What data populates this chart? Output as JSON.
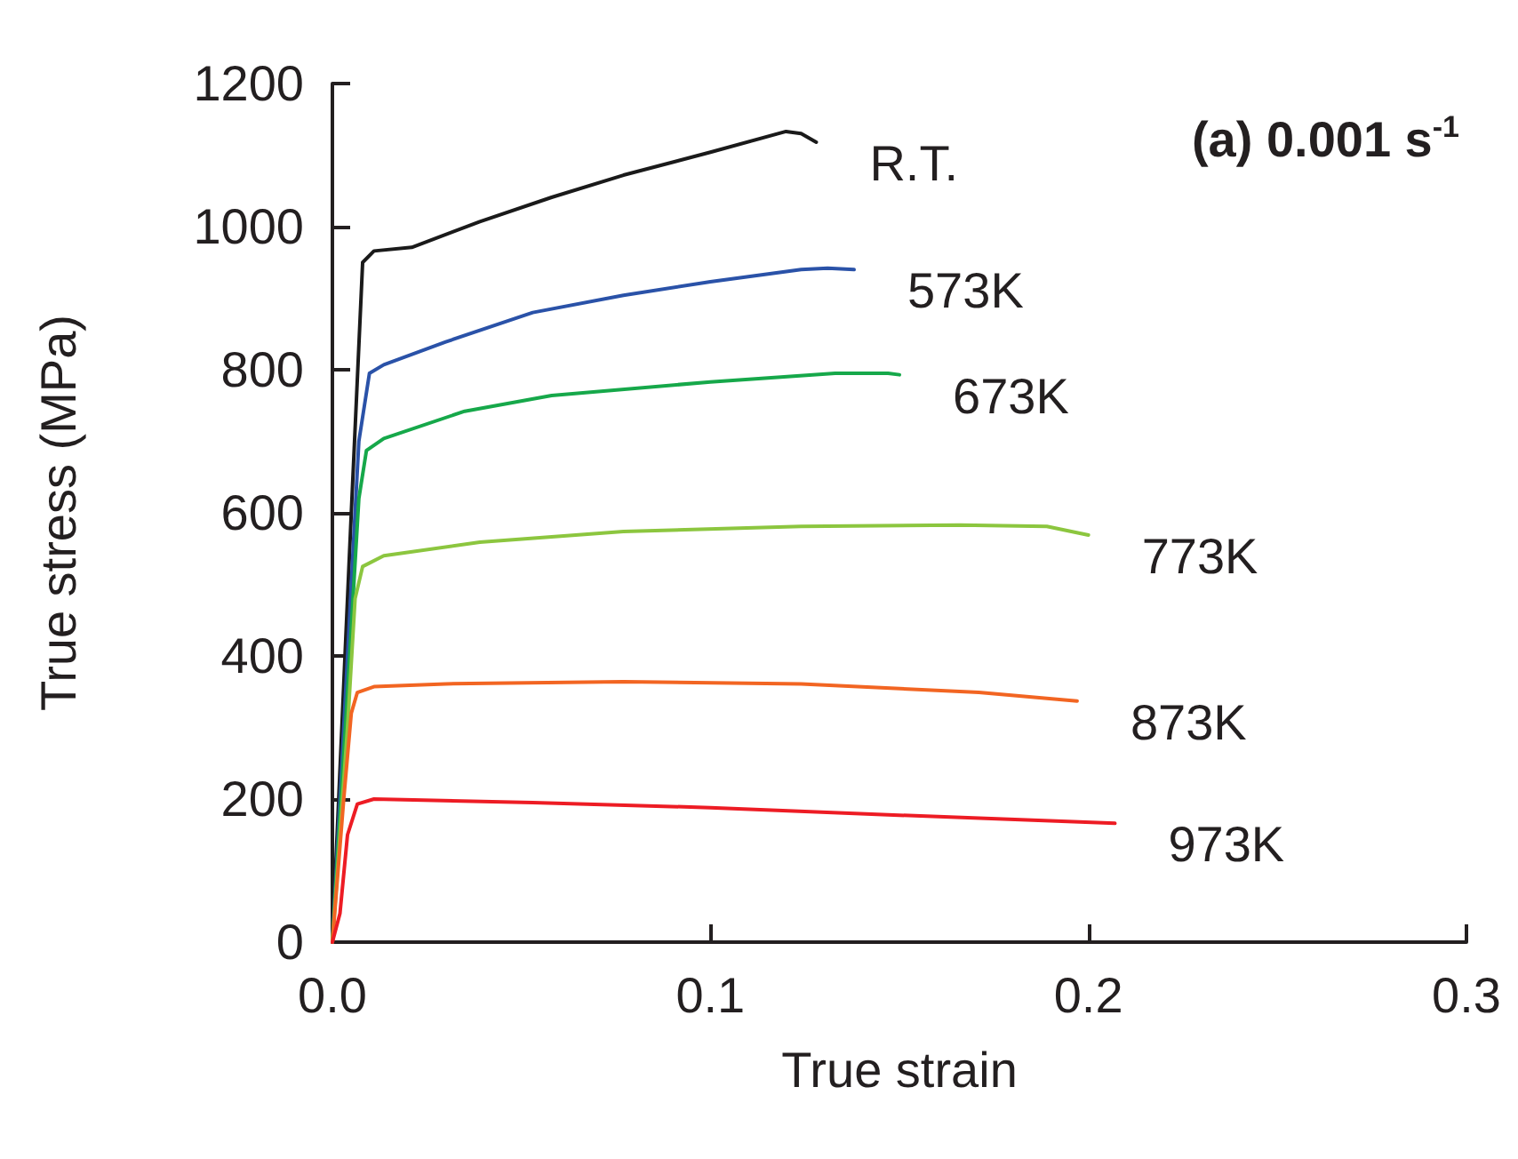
{
  "chart_data": {
    "type": "line",
    "title": "(a) 0.001 s$^{-1}$",
    "xlabel": "True strain",
    "ylabel": "True stress (MPa)",
    "xlim": [
      0,
      0.3
    ],
    "xticks": [
      {
        "value": 0,
        "label": "0.0"
      },
      0.1,
      0.2,
      0.3
    ],
    "ylim": [
      0,
      1200
    ],
    "yticks": [
      0,
      200,
      400,
      600,
      800,
      1000,
      1200
    ],
    "grid": false,
    "legend": false,
    "marker": "none",
    "line_style": "solid",
    "series": [
      {
        "name": "R.T.",
        "color": "#1a1a1a",
        "x": [
          0,
          0.005,
          0.008,
          0.011,
          0.021,
          0.039,
          0.058,
          0.077,
          0.1,
          0.12,
          0.124,
          0.128
        ],
        "values": [
          0,
          600,
          950,
          966,
          971,
          1007,
          1041,
          1072,
          1104,
          1133,
          1130,
          1118
        ]
      },
      {
        "name": "573K",
        "color": "#2a52a8",
        "x": [
          0,
          0.004,
          0.007,
          0.0098,
          0.0136,
          0.03,
          0.053,
          0.077,
          0.1,
          0.124,
          0.131,
          0.138
        ],
        "values": [
          0,
          400,
          700,
          795,
          807,
          839,
          880,
          904,
          923,
          940,
          942,
          940
        ]
      },
      {
        "name": "673K",
        "color": "#16a84a",
        "x": [
          0,
          0.004,
          0.007,
          0.009,
          0.0136,
          0.035,
          0.058,
          0.1,
          0.133,
          0.147,
          0.15
        ],
        "values": [
          0,
          350,
          620,
          687,
          704,
          742,
          764,
          783,
          795,
          795,
          793
        ]
      },
      {
        "name": "773K",
        "color": "#8cc63f",
        "x": [
          0,
          0.004,
          0.006,
          0.008,
          0.0136,
          0.039,
          0.077,
          0.124,
          0.166,
          0.189,
          0.2
        ],
        "values": [
          0,
          300,
          480,
          525,
          540,
          559,
          574,
          581,
          583,
          581,
          569
        ]
      },
      {
        "name": "873K",
        "color": "#f26522",
        "x": [
          0,
          0.003,
          0.005,
          0.0066,
          0.011,
          0.03,
          0.077,
          0.124,
          0.171,
          0.197
        ],
        "values": [
          0,
          200,
          320,
          349,
          357,
          361,
          364,
          361,
          349,
          337
        ]
      },
      {
        "name": "973K",
        "color": "#ed1c24",
        "x": [
          0,
          0.002,
          0.004,
          0.0066,
          0.011,
          0.053,
          0.1,
          0.147,
          0.207
        ],
        "values": [
          0,
          40,
          150,
          193,
          200,
          195,
          188,
          178,
          166
        ]
      }
    ]
  }
}
